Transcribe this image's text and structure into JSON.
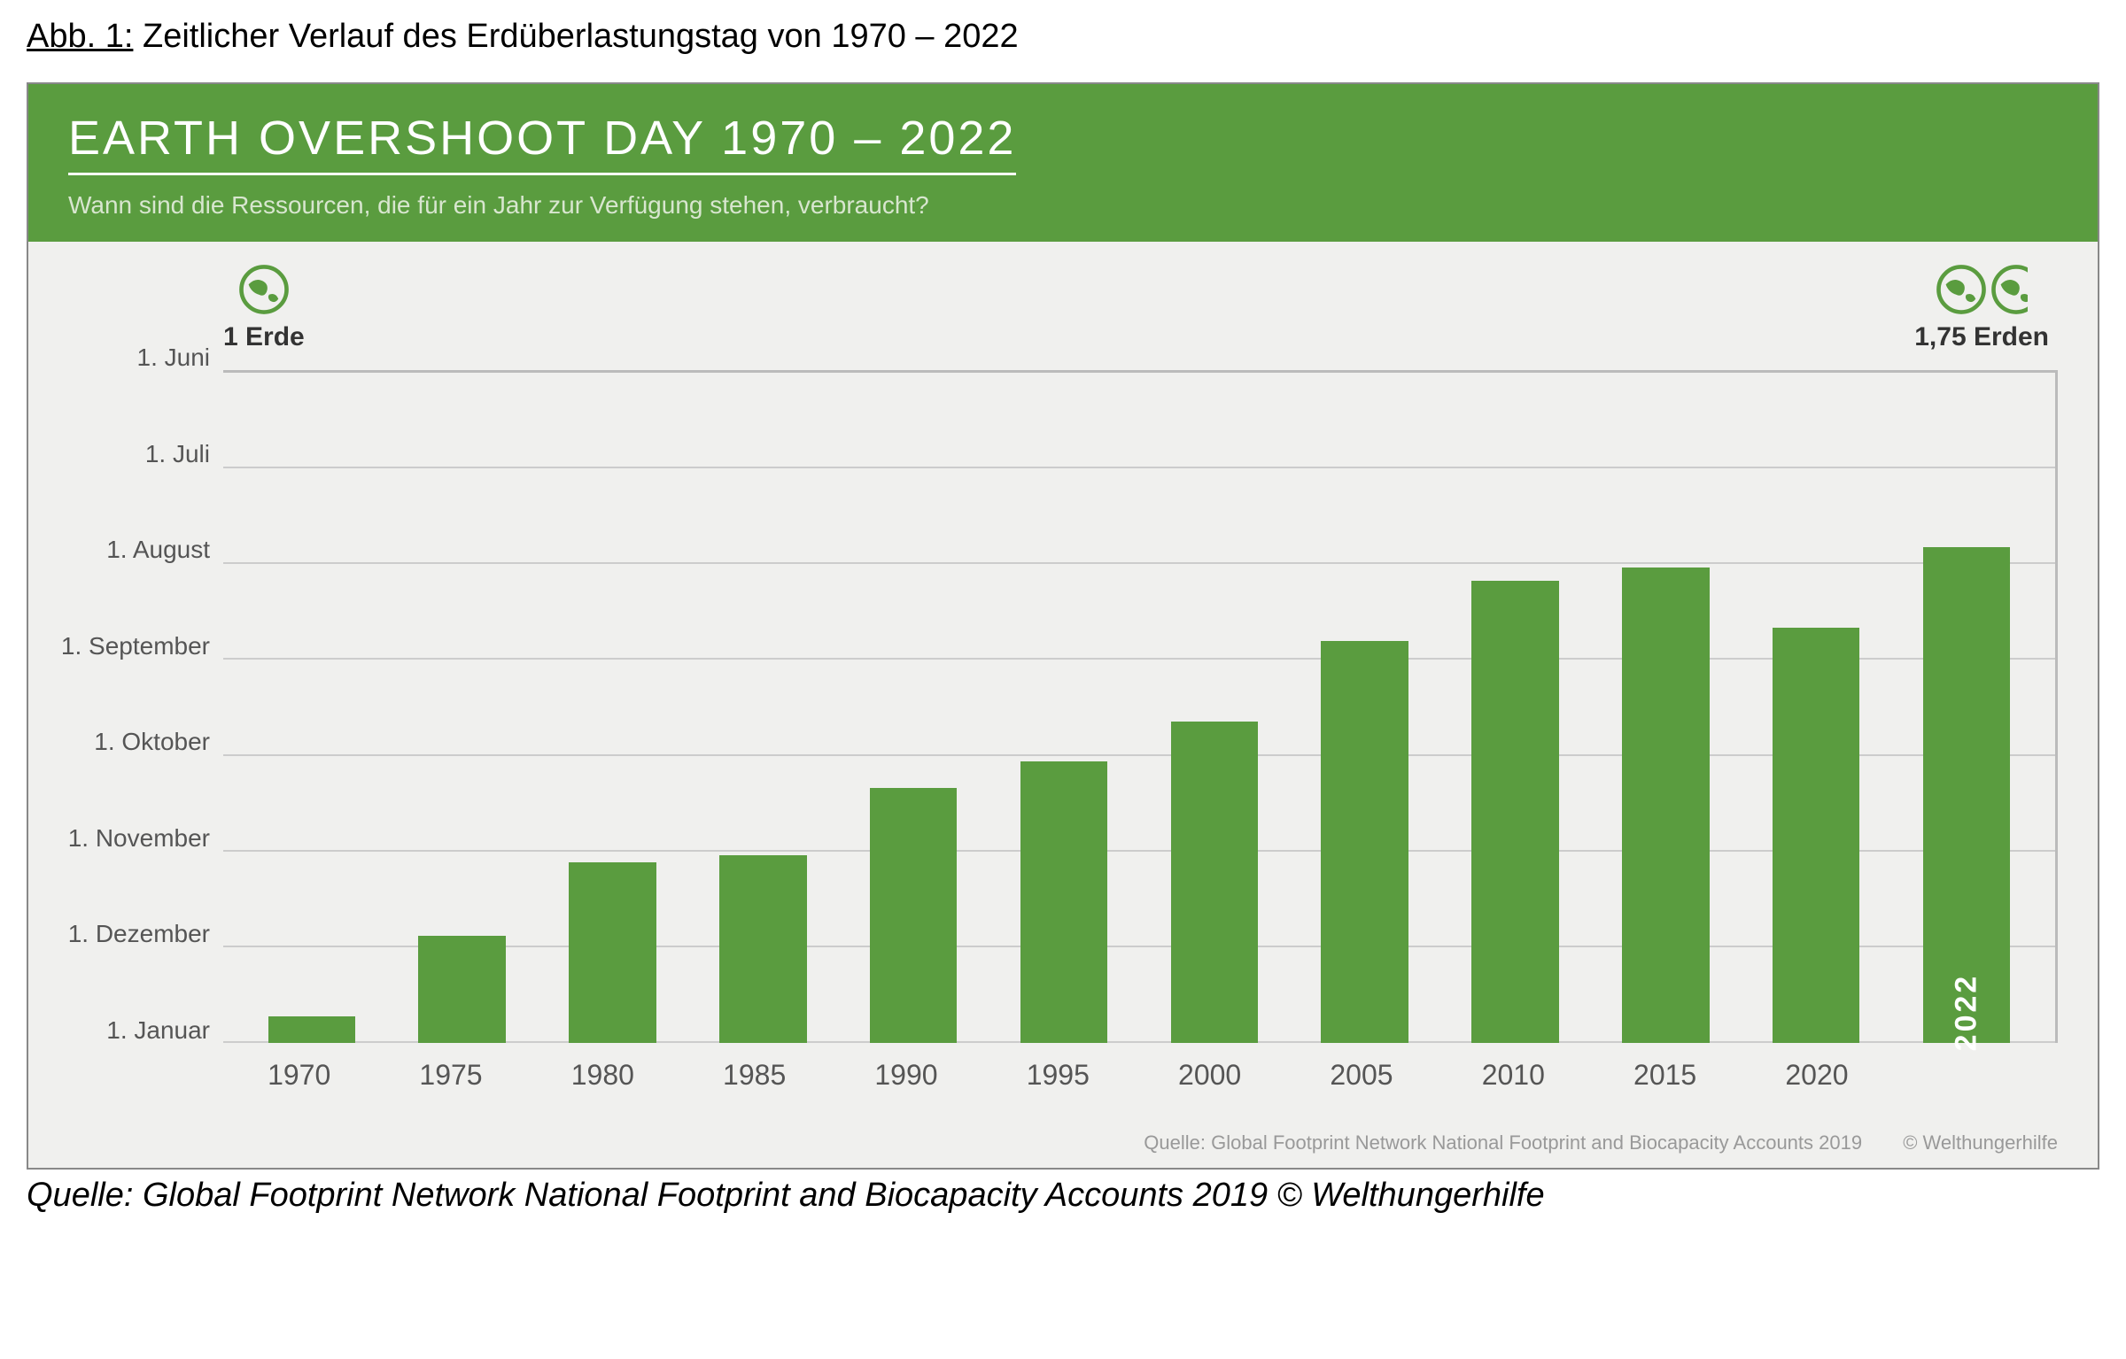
{
  "caption": {
    "label": "Abb. 1:",
    "text": "Zeitlicher Verlauf des Erdüberlastungstag von 1970 – 2022"
  },
  "header": {
    "title": "EARTH OVERSHOOT DAY 1970 – 2022",
    "subtitle": "Wann sind die Ressourcen, die für ein Jahr zur Verfügung stehen, verbraucht?"
  },
  "earth_labels": {
    "left": "1 Erde",
    "right": "1,75 Erden"
  },
  "chart": {
    "type": "bar",
    "y_ticks": [
      "1. Juni",
      "1. Juli",
      "1. August",
      "1. September",
      "1. Oktober",
      "1. November",
      "1. Dezember",
      "1. Januar"
    ],
    "x_ticks": [
      "1970",
      "1975",
      "1980",
      "1985",
      "1990",
      "1995",
      "2000",
      "2005",
      "2010",
      "2015",
      "2020",
      ""
    ],
    "bars": [
      {
        "year": "1970",
        "height_pct": 4
      },
      {
        "year": "1975",
        "height_pct": 16
      },
      {
        "year": "1980",
        "height_pct": 27
      },
      {
        "year": "1985",
        "height_pct": 28
      },
      {
        "year": "1990",
        "height_pct": 38
      },
      {
        "year": "1995",
        "height_pct": 42
      },
      {
        "year": "2000",
        "height_pct": 48
      },
      {
        "year": "2005",
        "height_pct": 60
      },
      {
        "year": "2010",
        "height_pct": 69
      },
      {
        "year": "2015",
        "height_pct": 71
      },
      {
        "year": "2020",
        "height_pct": 62
      },
      {
        "year": "2022",
        "height_pct": 74,
        "label": "2022"
      }
    ],
    "bar_color": "#5a9c3f",
    "grid_color": "#cccccc",
    "background_color": "#f0f0ee",
    "header_bg": "#5a9c3f",
    "axis_fontsize": 28,
    "title_fontsize": 54
  },
  "inner_source": {
    "text": "Quelle: Global Footprint Network National Footprint and Biocapacity Accounts 2019",
    "copyright": "© Welthungerhilfe"
  },
  "outer_source": "Quelle: Global Footprint Network National Footprint and Biocapacity Accounts 2019 © Welthungerhilfe"
}
